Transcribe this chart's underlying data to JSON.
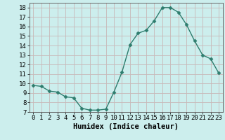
{
  "x": [
    0,
    1,
    2,
    3,
    4,
    5,
    6,
    7,
    8,
    9,
    10,
    11,
    12,
    13,
    14,
    15,
    16,
    17,
    18,
    19,
    20,
    21,
    22,
    23
  ],
  "y": [
    9.8,
    9.7,
    9.2,
    9.1,
    8.6,
    8.5,
    7.4,
    7.2,
    7.2,
    7.3,
    9.1,
    11.2,
    14.1,
    15.3,
    15.6,
    16.6,
    18.0,
    18.0,
    17.5,
    16.2,
    14.5,
    13.0,
    12.6,
    11.1
  ],
  "line_color": "#2e7d6e",
  "marker": "D",
  "marker_size": 2.5,
  "bg_color": "#cceeed",
  "grid_color": "#c8b8b8",
  "xlabel": "Humidex (Indice chaleur)",
  "ylim": [
    7,
    18.5
  ],
  "yticks": [
    7,
    8,
    9,
    10,
    11,
    12,
    13,
    14,
    15,
    16,
    17,
    18
  ],
  "xticks": [
    0,
    1,
    2,
    3,
    4,
    5,
    6,
    7,
    8,
    9,
    10,
    11,
    12,
    13,
    14,
    15,
    16,
    17,
    18,
    19,
    20,
    21,
    22,
    23
  ],
  "xlim": [
    -0.5,
    23.5
  ],
  "xlabel_fontsize": 7.5,
  "tick_fontsize": 6.5,
  "line_width": 1.0
}
